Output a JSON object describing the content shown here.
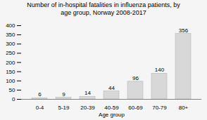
{
  "chart_data": {
    "type": "bar",
    "title": "Number of in-hospital fatalities in influenza patients, by\nage group, Norway 2008-2017",
    "xlabel": "Age group",
    "categories": [
      "0-4",
      "5-19",
      "20-39",
      "40-59",
      "60-69",
      "70-79",
      "80+"
    ],
    "values": [
      6,
      9,
      14,
      44,
      96,
      140,
      356
    ],
    "color": "#d8d8d8",
    "ylim": [
      0,
      400
    ],
    "yticks": [
      0,
      50,
      100,
      150,
      200,
      250,
      300,
      350,
      400
    ],
    "data_labels": true
  }
}
